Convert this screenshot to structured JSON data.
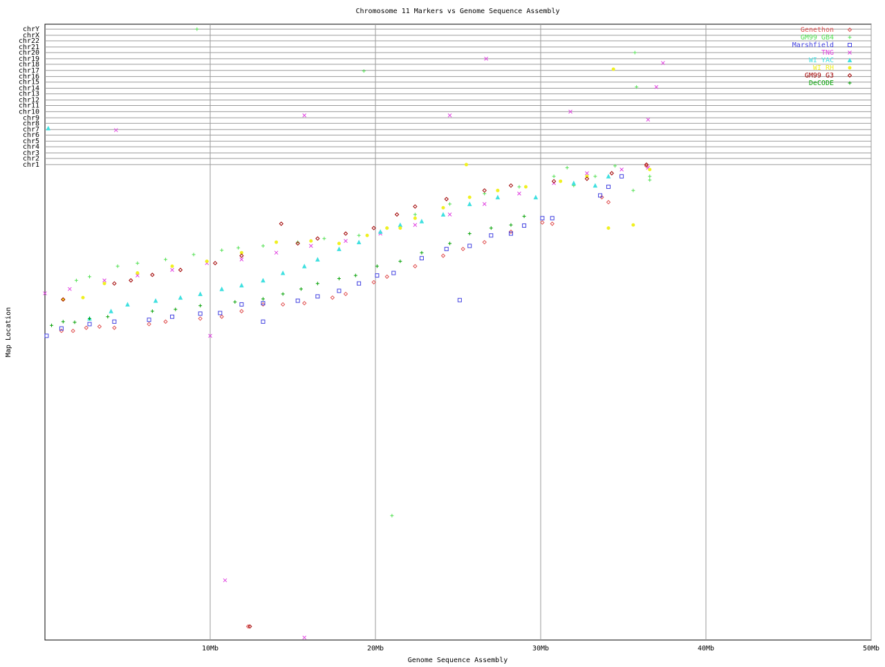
{
  "chart_data": {
    "type": "scatter",
    "title": "Chromosome 11 Markers vs Genome Sequence Assembly",
    "x_label": "Genome Sequence Assembly",
    "y_label": "Map Location",
    "xlim": [
      0,
      50
    ],
    "xticks": [
      {
        "value": 10,
        "label": "10Mb"
      },
      {
        "value": 20,
        "label": "20Mb"
      },
      {
        "value": 30,
        "label": "30Mb"
      },
      {
        "value": 40,
        "label": "40Mb"
      },
      {
        "value": 50,
        "label": "50Mb"
      }
    ],
    "ylim": [
      0,
      100
    ],
    "yticks": [
      {
        "value": 77.2,
        "label": "chr1"
      },
      {
        "value": 78.2,
        "label": "chr2"
      },
      {
        "value": 79.1,
        "label": "chr3"
      },
      {
        "value": 80.1,
        "label": "chr4"
      },
      {
        "value": 81.0,
        "label": "chr5"
      },
      {
        "value": 82.0,
        "label": "chr6"
      },
      {
        "value": 82.9,
        "label": "chr7"
      },
      {
        "value": 83.9,
        "label": "chr8"
      },
      {
        "value": 84.8,
        "label": "chr9"
      },
      {
        "value": 85.8,
        "label": "chr10"
      },
      {
        "value": 86.8,
        "label": "chr11"
      },
      {
        "value": 87.7,
        "label": "chr12"
      },
      {
        "value": 88.7,
        "label": "chr13"
      },
      {
        "value": 89.6,
        "label": "chr14"
      },
      {
        "value": 90.6,
        "label": "chr15"
      },
      {
        "value": 91.5,
        "label": "chr16"
      },
      {
        "value": 92.5,
        "label": "chr17"
      },
      {
        "value": 93.5,
        "label": "chr18"
      },
      {
        "value": 94.4,
        "label": "chr19"
      },
      {
        "value": 95.4,
        "label": "chr20"
      },
      {
        "value": 96.3,
        "label": "chr21"
      },
      {
        "value": 97.3,
        "label": "chr22"
      },
      {
        "value": 98.2,
        "label": "chrX"
      },
      {
        "value": 99.2,
        "label": "chrY"
      }
    ],
    "grid": true,
    "legend": "top-right",
    "series": [
      {
        "name": "Genethon",
        "color": "#e05050",
        "marker": "diamond",
        "x": [
          1.0,
          1.7,
          2.5,
          3.3,
          4.2,
          6.3,
          7.3,
          9.4,
          10.7,
          11.9,
          13.2,
          14.4,
          15.7,
          17.4,
          18.2,
          19.9,
          20.7,
          22.4,
          24.1,
          25.3,
          26.6,
          28.2,
          30.1,
          30.7,
          33.7,
          34.1,
          36.4,
          12.3
        ],
        "values": [
          50.2,
          50.2,
          50.7,
          50.9,
          50.7,
          51.3,
          51.7,
          52.2,
          52.5,
          53.4,
          54.5,
          54.5,
          54.7,
          55.6,
          56.2,
          58.1,
          59.0,
          60.7,
          62.4,
          63.5,
          64.6,
          66.3,
          67.8,
          67.6,
          71.9,
          71.1,
          77.0,
          2.2
        ]
      },
      {
        "name": "GM99 GB4",
        "color": "#50e050",
        "marker": "plus",
        "x": [
          1.9,
          2.7,
          4.4,
          5.6,
          7.3,
          9.0,
          10.7,
          11.7,
          13.2,
          15.3,
          16.9,
          19.0,
          20.7,
          22.4,
          24.5,
          26.6,
          28.7,
          30.8,
          32.0,
          33.3,
          34.5,
          35.6,
          36.6,
          9.2,
          19.3,
          35.8,
          35.7,
          21.0,
          31.6,
          36.6
        ],
        "values": [
          58.4,
          59.0,
          60.7,
          61.2,
          61.8,
          62.6,
          63.3,
          63.7,
          64.0,
          64.6,
          65.2,
          65.7,
          66.9,
          69.1,
          70.8,
          72.5,
          73.6,
          75.3,
          73.8,
          75.3,
          77.0,
          73.0,
          74.7,
          99.2,
          92.4,
          89.8,
          95.4,
          20.2,
          76.7,
          75.3
        ]
      },
      {
        "name": "Marshfield",
        "color": "#4040e0",
        "marker": "square",
        "x": [
          0.1,
          1.0,
          2.7,
          4.2,
          6.3,
          7.7,
          9.4,
          10.6,
          11.9,
          13.2,
          15.3,
          16.5,
          17.8,
          19.0,
          20.1,
          21.1,
          22.8,
          24.3,
          25.7,
          27.0,
          28.2,
          29.0,
          30.1,
          30.7,
          13.2,
          25.1,
          33.6,
          34.1,
          34.9
        ],
        "values": [
          49.4,
          50.6,
          51.3,
          51.7,
          52.0,
          52.5,
          53.0,
          53.1,
          54.5,
          54.7,
          55.1,
          55.8,
          56.7,
          57.9,
          59.2,
          59.6,
          62.0,
          63.5,
          64.0,
          65.7,
          66.0,
          67.3,
          68.5,
          68.5,
          51.7,
          55.2,
          72.2,
          73.6,
          75.3
        ]
      },
      {
        "name": "TNG",
        "color": "#e040e0",
        "marker": "x",
        "x": [
          0,
          1.5,
          3.6,
          5.6,
          7.7,
          9.8,
          11.9,
          14.0,
          16.1,
          18.2,
          20.3,
          22.4,
          24.5,
          26.6,
          28.7,
          30.8,
          32.8,
          34.9,
          36.5,
          4.3,
          15.7,
          24.5,
          26.7,
          31.8,
          36.5,
          37.0,
          37.4,
          10.0,
          10.9,
          15.7
        ],
        "values": [
          56.3,
          57.0,
          58.4,
          59.2,
          60.1,
          61.2,
          61.8,
          62.9,
          64.0,
          64.8,
          66.0,
          67.4,
          69.1,
          70.8,
          72.5,
          74.2,
          75.8,
          76.4,
          76.7,
          82.8,
          85.2,
          85.2,
          94.4,
          85.8,
          84.5,
          89.8,
          93.7,
          49.4,
          9.7,
          0.4
        ]
      },
      {
        "name": "WI YAC",
        "color": "#40e0e0",
        "marker": "triangle",
        "x": [
          0.2,
          2.7,
          4.0,
          5.0,
          6.7,
          8.2,
          9.4,
          10.7,
          11.9,
          13.2,
          14.4,
          15.7,
          16.5,
          17.8,
          19.0,
          20.3,
          21.5,
          22.8,
          24.1,
          25.7,
          27.4,
          29.7,
          32.0,
          33.3,
          34.1
        ],
        "values": [
          83.1,
          52.2,
          53.4,
          54.5,
          55.1,
          55.6,
          56.2,
          57.0,
          57.6,
          58.4,
          59.6,
          60.7,
          61.8,
          63.5,
          64.6,
          66.3,
          67.4,
          68.0,
          69.1,
          70.8,
          71.9,
          71.9,
          74.2,
          73.8,
          75.3
        ]
      },
      {
        "name": "WI RH",
        "color": "#f0f020",
        "marker": "circle",
        "x": [
          1.1,
          2.3,
          3.6,
          5.6,
          7.7,
          9.8,
          11.9,
          14.0,
          16.1,
          17.8,
          19.5,
          20.7,
          22.4,
          24.1,
          25.7,
          27.4,
          29.1,
          31.2,
          32.8,
          34.4,
          36.6,
          25.5,
          34.1,
          35.6,
          21.5
        ],
        "values": [
          55.3,
          55.6,
          57.9,
          59.6,
          60.7,
          61.5,
          62.9,
          64.6,
          64.8,
          64.4,
          65.7,
          66.9,
          68.5,
          70.2,
          71.9,
          73.0,
          73.6,
          74.5,
          75.3,
          92.7,
          76.4,
          77.2,
          66.9,
          67.4,
          66.9
        ]
      },
      {
        "name": "GM99 G3",
        "color": "#a00000",
        "marker": "diamond",
        "x": [
          1.1,
          4.2,
          5.2,
          6.5,
          8.2,
          10.3,
          11.9,
          14.3,
          15.3,
          16.5,
          18.2,
          19.9,
          21.3,
          22.4,
          24.3,
          26.6,
          28.2,
          30.8,
          32.8,
          34.3,
          36.4,
          12.4
        ],
        "values": [
          55.3,
          57.9,
          58.4,
          59.3,
          60.1,
          61.2,
          62.4,
          67.6,
          64.4,
          65.2,
          66.0,
          66.9,
          69.1,
          70.4,
          71.6,
          73.0,
          73.8,
          74.5,
          74.9,
          75.8,
          77.2,
          2.2
        ]
      },
      {
        "name": "DeCODE",
        "color": "#00a000",
        "marker": "plus",
        "x": [
          0.4,
          1.1,
          1.8,
          2.7,
          3.8,
          6.5,
          7.9,
          9.4,
          11.5,
          13.2,
          14.4,
          15.5,
          16.5,
          17.8,
          18.8,
          20.1,
          21.5,
          22.8,
          24.5,
          25.7,
          27.0,
          28.2,
          29.0
        ],
        "values": [
          51.1,
          51.7,
          51.6,
          52.2,
          52.5,
          53.4,
          53.7,
          54.3,
          54.9,
          55.4,
          56.2,
          57.0,
          57.9,
          58.7,
          59.2,
          60.7,
          61.5,
          62.9,
          64.4,
          66.0,
          66.9,
          67.4,
          68.8
        ]
      }
    ]
  }
}
